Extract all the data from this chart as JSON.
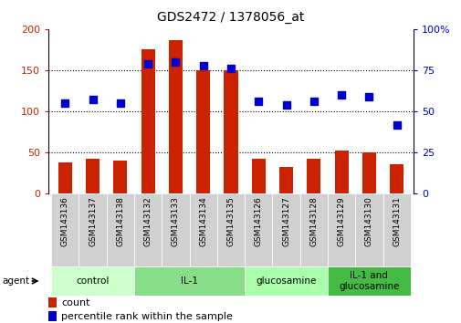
{
  "title": "GDS2472 / 1378056_at",
  "samples": [
    "GSM143136",
    "GSM143137",
    "GSM143138",
    "GSM143132",
    "GSM143133",
    "GSM143134",
    "GSM143135",
    "GSM143126",
    "GSM143127",
    "GSM143128",
    "GSM143129",
    "GSM143130",
    "GSM143131"
  ],
  "counts": [
    38,
    42,
    40,
    175,
    187,
    150,
    150,
    43,
    33,
    43,
    53,
    50,
    36
  ],
  "percentiles": [
    55,
    57,
    55,
    79,
    80,
    78,
    76,
    56,
    54,
    56,
    60,
    59,
    42
  ],
  "group_labels": [
    "control",
    "IL-1",
    "glucosamine",
    "IL-1 and\nglucosamine"
  ],
  "group_starts": [
    0,
    3,
    7,
    10
  ],
  "group_spans": [
    3,
    4,
    3,
    3
  ],
  "group_colors": [
    "#ccffcc",
    "#88dd88",
    "#aaffaa",
    "#44bb44"
  ],
  "bar_color": "#cc2200",
  "dot_color": "#0000cc",
  "cell_bg": "#d0d0d0",
  "left_ylim": [
    0,
    200
  ],
  "right_ylim": [
    0,
    100
  ],
  "left_yticks": [
    0,
    50,
    100,
    150,
    200
  ],
  "right_yticks": [
    0,
    25,
    50,
    75,
    100
  ],
  "right_yticklabels": [
    "0",
    "25",
    "50",
    "75",
    "100%"
  ],
  "bar_width": 0.5,
  "dot_size": 32
}
